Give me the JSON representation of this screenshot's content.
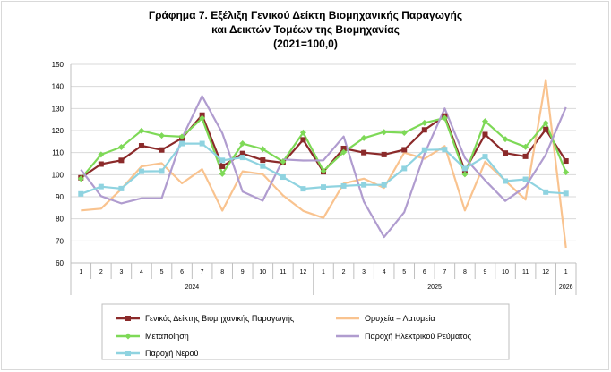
{
  "chart_data": {
    "type": "line",
    "title_lines": [
      "Γράφημα 7. Εξέλιξη Γενικού Δείκτη Βιομηχανικής Παραγωγής",
      "και Δεικτών Τομέων της Βιομηχανίας",
      "(2021=100,0)"
    ],
    "x_ticks": [
      "1",
      "2",
      "3",
      "4",
      "5",
      "6",
      "7",
      "8",
      "9",
      "10",
      "11",
      "12",
      "1",
      "2",
      "3",
      "4",
      "5",
      "6",
      "7",
      "8",
      "9",
      "10",
      "11",
      "12",
      "1"
    ],
    "year_labels": [
      {
        "label": "2024",
        "start": 0,
        "end": 11
      },
      {
        "label": "2025",
        "start": 12,
        "end": 23
      },
      {
        "label": "2026",
        "start": 24,
        "end": 24
      }
    ],
    "ylim": [
      60,
      150
    ],
    "y_step": 10,
    "grid": true,
    "legend_position": "bottom",
    "series": [
      {
        "name": "Γενικός Δείκτης Βιομηχανικής Παραγωγής",
        "color": "#8b2a2a",
        "marker": "square",
        "values": [
          98.6,
          104.8,
          106.5,
          113.1,
          111.2,
          116.5,
          127.0,
          103.8,
          109.6,
          106.6,
          105.4,
          115.8,
          101.3,
          111.9,
          110.0,
          109.1,
          111.3,
          120.3,
          126.6,
          101.8,
          118.2,
          109.8,
          108.3,
          120.5,
          106.2
        ]
      },
      {
        "name": "Ορυχεία – Λατομεία",
        "color": "#f9c38f",
        "marker": "none",
        "values": [
          83.8,
          84.6,
          93.5,
          103.8,
          105.2,
          96.1,
          102.5,
          83.7,
          101.5,
          100.2,
          90.6,
          83.6,
          80.4,
          96.0,
          98.2,
          94.0,
          110.0,
          107.2,
          113.0,
          83.8,
          105.9,
          97.2,
          88.7,
          143.0,
          66.9
        ]
      },
      {
        "name": "Μεταποίηση",
        "color": "#7ed957",
        "marker": "diamond",
        "values": [
          98.2,
          109.1,
          112.5,
          119.9,
          117.7,
          117.2,
          125.6,
          100.4,
          114.1,
          111.6,
          105.9,
          119.1,
          101.7,
          110.2,
          116.6,
          119.3,
          119.0,
          123.5,
          125.7,
          100.2,
          124.2,
          116.1,
          112.6,
          123.4,
          101.1
        ]
      },
      {
        "name": "Παροχή Ηλεκτρικού Ρεύματος",
        "color": "#b09ccf",
        "marker": "none",
        "values": [
          102.3,
          90.3,
          87.0,
          89.3,
          89.3,
          116.5,
          135.6,
          118.8,
          92.3,
          88.2,
          106.9,
          106.4,
          106.5,
          117.3,
          87.8,
          71.7,
          83.0,
          109.4,
          130.0,
          107.6,
          97.4,
          88.1,
          94.6,
          109.1,
          130.6
        ]
      },
      {
        "name": "Παροχή Νερού",
        "color": "#8fd3e0",
        "marker": "square",
        "values": [
          91.3,
          94.6,
          93.7,
          101.5,
          101.6,
          114.1,
          114.1,
          106.5,
          107.8,
          103.9,
          98.9,
          93.6,
          94.4,
          94.9,
          95.4,
          95.4,
          102.8,
          111.2,
          111.4,
          102.8,
          108.2,
          97.1,
          97.9,
          92.1,
          91.5
        ]
      }
    ]
  }
}
